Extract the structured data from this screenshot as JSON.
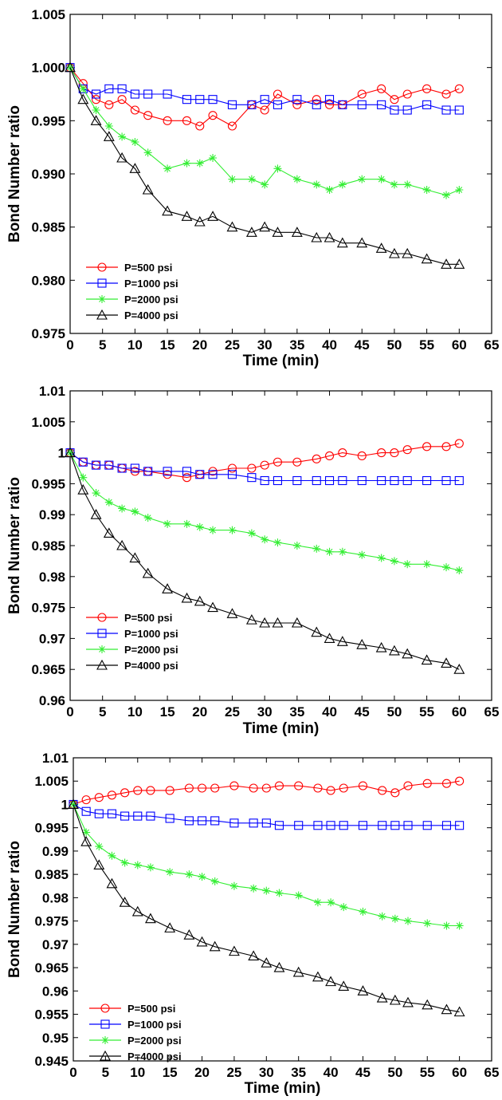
{
  "chart_data": [
    {
      "type": "line",
      "xlabel": "Time (min)",
      "ylabel": "Bond Number ratio",
      "xlim": [
        0,
        65
      ],
      "ylim": [
        0.975,
        1.005
      ],
      "xticks": [
        0,
        5,
        10,
        15,
        20,
        25,
        30,
        35,
        40,
        45,
        50,
        55,
        60,
        65
      ],
      "yticks": [
        0.975,
        0.98,
        0.985,
        0.99,
        0.995,
        1,
        1.005
      ],
      "ytick_labels": [
        "0.975",
        "0.980",
        "0.985",
        "0.990",
        "0.995",
        "1.000",
        "1.005"
      ],
      "grid": false,
      "legend_position": "bottom-left",
      "series": [
        {
          "name": "P=500 psi",
          "color": "#ff0000",
          "marker": "circle",
          "x": [
            0,
            2,
            4,
            6,
            8,
            10,
            12,
            15,
            18,
            20,
            22,
            25,
            28,
            30,
            32,
            35,
            38,
            40,
            42,
            45,
            48,
            50,
            52,
            55,
            58,
            60
          ],
          "y": [
            1.0,
            0.9985,
            0.997,
            0.9965,
            0.997,
            0.996,
            0.9955,
            0.995,
            0.995,
            0.9945,
            0.9955,
            0.9945,
            0.9965,
            0.996,
            0.9975,
            0.9965,
            0.997,
            0.9965,
            0.9965,
            0.9975,
            0.998,
            0.997,
            0.9975,
            0.998,
            0.9975,
            0.998
          ]
        },
        {
          "name": "P=1000 psi",
          "color": "#0000ff",
          "marker": "square",
          "x": [
            0,
            2,
            4,
            6,
            8,
            10,
            12,
            15,
            18,
            20,
            22,
            25,
            28,
            30,
            32,
            35,
            38,
            40,
            42,
            45,
            48,
            50,
            52,
            55,
            58,
            60
          ],
          "y": [
            1.0,
            0.998,
            0.9975,
            0.998,
            0.998,
            0.9975,
            0.9975,
            0.9975,
            0.997,
            0.997,
            0.997,
            0.9965,
            0.9965,
            0.997,
            0.9965,
            0.997,
            0.9965,
            0.997,
            0.9965,
            0.9965,
            0.9965,
            0.996,
            0.996,
            0.9965,
            0.996,
            0.996
          ]
        },
        {
          "name": "P=2000 psi",
          "color": "#33ee33",
          "marker": "asterisk",
          "x": [
            0,
            2,
            4,
            6,
            8,
            10,
            12,
            15,
            18,
            20,
            22,
            25,
            28,
            30,
            32,
            35,
            38,
            40,
            42,
            45,
            48,
            50,
            52,
            55,
            58,
            60
          ],
          "y": [
            1.0,
            0.998,
            0.996,
            0.9945,
            0.9935,
            0.993,
            0.992,
            0.9905,
            0.991,
            0.991,
            0.9915,
            0.9895,
            0.9895,
            0.989,
            0.9905,
            0.9895,
            0.989,
            0.9885,
            0.989,
            0.9895,
            0.9895,
            0.989,
            0.989,
            0.9885,
            0.988,
            0.9885
          ]
        },
        {
          "name": "P=4000 psi",
          "color": "#000000",
          "marker": "triangle",
          "x": [
            0,
            2,
            4,
            6,
            8,
            10,
            12,
            15,
            18,
            20,
            22,
            25,
            28,
            30,
            32,
            35,
            38,
            40,
            42,
            45,
            48,
            50,
            52,
            55,
            58,
            60
          ],
          "y": [
            1.0,
            0.997,
            0.995,
            0.9935,
            0.9915,
            0.9905,
            0.9885,
            0.9865,
            0.986,
            0.9855,
            0.986,
            0.985,
            0.9845,
            0.985,
            0.9845,
            0.9845,
            0.984,
            0.984,
            0.9835,
            0.9835,
            0.983,
            0.9825,
            0.9825,
            0.982,
            0.9815,
            0.9815
          ]
        }
      ]
    },
    {
      "type": "line",
      "xlabel": "Time (min)",
      "ylabel": "Bond Number ratio",
      "xlim": [
        0,
        65
      ],
      "ylim": [
        0.96,
        1.01
      ],
      "xticks": [
        0,
        5,
        10,
        15,
        20,
        25,
        30,
        35,
        40,
        45,
        50,
        55,
        60,
        65
      ],
      "yticks": [
        0.96,
        0.965,
        0.97,
        0.975,
        0.98,
        0.985,
        0.99,
        0.995,
        1,
        1.005,
        1.01
      ],
      "ytick_labels": [
        "0.96",
        "0.965",
        "0.97",
        "0.975",
        "0.98",
        "0.985",
        "0.99",
        "0.995",
        "1",
        "1.005",
        "1.01"
      ],
      "grid": false,
      "legend_position": "bottom-left",
      "series": [
        {
          "name": "P=500 psi",
          "color": "#ff0000",
          "marker": "circle",
          "x": [
            0,
            2,
            4,
            6,
            8,
            10,
            12,
            15,
            18,
            20,
            22,
            25,
            28,
            30,
            32,
            35,
            38,
            40,
            42,
            45,
            48,
            50,
            52,
            55,
            58,
            60
          ],
          "y": [
            1.0,
            0.9985,
            0.998,
            0.998,
            0.9975,
            0.997,
            0.997,
            0.9965,
            0.996,
            0.9965,
            0.997,
            0.9975,
            0.9975,
            0.998,
            0.9985,
            0.9985,
            0.999,
            0.9995,
            1.0,
            0.9995,
            1.0,
            1.0,
            1.0005,
            1.001,
            1.001,
            1.0015
          ]
        },
        {
          "name": "P=1000 psi",
          "color": "#0000ff",
          "marker": "square",
          "x": [
            0,
            2,
            4,
            6,
            8,
            10,
            12,
            15,
            18,
            20,
            22,
            25,
            28,
            30,
            32,
            35,
            38,
            40,
            42,
            45,
            48,
            50,
            52,
            55,
            58,
            60
          ],
          "y": [
            1.0,
            0.9985,
            0.998,
            0.998,
            0.9975,
            0.9975,
            0.997,
            0.997,
            0.997,
            0.9965,
            0.9965,
            0.9965,
            0.996,
            0.9955,
            0.9955,
            0.9955,
            0.9955,
            0.9955,
            0.9955,
            0.9955,
            0.9955,
            0.9955,
            0.9955,
            0.9955,
            0.9955,
            0.9955
          ]
        },
        {
          "name": "P=2000 psi",
          "color": "#33ee33",
          "marker": "asterisk",
          "x": [
            0,
            2,
            4,
            6,
            8,
            10,
            12,
            15,
            18,
            20,
            22,
            25,
            28,
            30,
            32,
            35,
            38,
            40,
            42,
            45,
            48,
            50,
            52,
            55,
            58,
            60
          ],
          "y": [
            1.0,
            0.996,
            0.9935,
            0.992,
            0.991,
            0.9905,
            0.9895,
            0.9885,
            0.9885,
            0.988,
            0.9875,
            0.9875,
            0.987,
            0.986,
            0.9855,
            0.985,
            0.9845,
            0.984,
            0.984,
            0.9835,
            0.983,
            0.9825,
            0.982,
            0.982,
            0.9815,
            0.981
          ]
        },
        {
          "name": "P=4000 psi",
          "color": "#000000",
          "marker": "triangle",
          "x": [
            0,
            2,
            4,
            6,
            8,
            10,
            12,
            15,
            18,
            20,
            22,
            25,
            28,
            30,
            32,
            35,
            38,
            40,
            42,
            45,
            48,
            50,
            52,
            55,
            58,
            60
          ],
          "y": [
            1.0,
            0.994,
            0.99,
            0.987,
            0.985,
            0.983,
            0.9805,
            0.978,
            0.9765,
            0.976,
            0.975,
            0.974,
            0.973,
            0.9725,
            0.9725,
            0.9725,
            0.971,
            0.97,
            0.9695,
            0.969,
            0.9685,
            0.968,
            0.9675,
            0.9665,
            0.966,
            0.965
          ]
        }
      ]
    },
    {
      "type": "line",
      "xlabel": "Time (min)",
      "ylabel": "Bond Number ratio",
      "xlim": [
        0,
        65
      ],
      "ylim": [
        0.945,
        1.01
      ],
      "xticks": [
        0,
        5,
        10,
        15,
        20,
        25,
        30,
        35,
        40,
        45,
        50,
        55,
        60,
        65
      ],
      "yticks": [
        0.945,
        0.95,
        0.955,
        0.96,
        0.965,
        0.97,
        0.975,
        0.98,
        0.985,
        0.99,
        0.995,
        1,
        1.005,
        1.01
      ],
      "ytick_labels": [
        "0.945",
        "0.95",
        "0.955",
        "0.96",
        "0.965",
        "0.97",
        "0.975",
        "0.98",
        "0.985",
        "0.99",
        "0.995",
        "1",
        "1.005",
        "1.01"
      ],
      "grid": false,
      "legend_position": "bottom-left",
      "series": [
        {
          "name": "P=500 psi",
          "color": "#ff0000",
          "marker": "circle",
          "x": [
            0,
            2,
            4,
            6,
            8,
            10,
            12,
            15,
            18,
            20,
            22,
            25,
            28,
            30,
            32,
            35,
            38,
            40,
            42,
            45,
            48,
            50,
            52,
            55,
            58,
            60
          ],
          "y": [
            1.0,
            1.001,
            1.0015,
            1.002,
            1.0025,
            1.003,
            1.003,
            1.003,
            1.0035,
            1.0035,
            1.0035,
            1.004,
            1.0035,
            1.0035,
            1.004,
            1.004,
            1.0035,
            1.003,
            1.0035,
            1.004,
            1.003,
            1.0025,
            1.004,
            1.0045,
            1.0045,
            1.005
          ]
        },
        {
          "name": "P=1000 psi",
          "color": "#0000ff",
          "marker": "square",
          "x": [
            0,
            2,
            4,
            6,
            8,
            10,
            12,
            15,
            18,
            20,
            22,
            25,
            28,
            30,
            32,
            35,
            38,
            40,
            42,
            45,
            48,
            50,
            52,
            55,
            58,
            60
          ],
          "y": [
            1.0,
            0.9985,
            0.998,
            0.998,
            0.9975,
            0.9975,
            0.9975,
            0.997,
            0.9965,
            0.9965,
            0.9965,
            0.996,
            0.996,
            0.996,
            0.9955,
            0.9955,
            0.9955,
            0.9955,
            0.9955,
            0.9955,
            0.9955,
            0.9955,
            0.9955,
            0.9955,
            0.9955,
            0.9955
          ]
        },
        {
          "name": "P=2000 psi",
          "color": "#33ee33",
          "marker": "asterisk",
          "x": [
            0,
            2,
            4,
            6,
            8,
            10,
            12,
            15,
            18,
            20,
            22,
            25,
            28,
            30,
            32,
            35,
            38,
            40,
            42,
            45,
            48,
            50,
            52,
            55,
            58,
            60
          ],
          "y": [
            1.0,
            0.994,
            0.991,
            0.989,
            0.9875,
            0.987,
            0.9865,
            0.9855,
            0.985,
            0.9845,
            0.9835,
            0.9825,
            0.982,
            0.9815,
            0.981,
            0.9805,
            0.979,
            0.979,
            0.978,
            0.977,
            0.976,
            0.9755,
            0.975,
            0.9745,
            0.974,
            0.974
          ]
        },
        {
          "name": "P=4000 psi",
          "color": "#000000",
          "marker": "triangle",
          "x": [
            0,
            2,
            4,
            6,
            8,
            10,
            12,
            15,
            18,
            20,
            22,
            25,
            28,
            30,
            32,
            35,
            38,
            40,
            42,
            45,
            48,
            50,
            52,
            55,
            58,
            60
          ],
          "y": [
            1.0,
            0.992,
            0.987,
            0.983,
            0.979,
            0.977,
            0.9755,
            0.9735,
            0.972,
            0.9705,
            0.9695,
            0.9685,
            0.9675,
            0.966,
            0.965,
            0.964,
            0.963,
            0.962,
            0.961,
            0.96,
            0.9585,
            0.958,
            0.9575,
            0.957,
            0.956,
            0.9555
          ]
        }
      ]
    }
  ]
}
